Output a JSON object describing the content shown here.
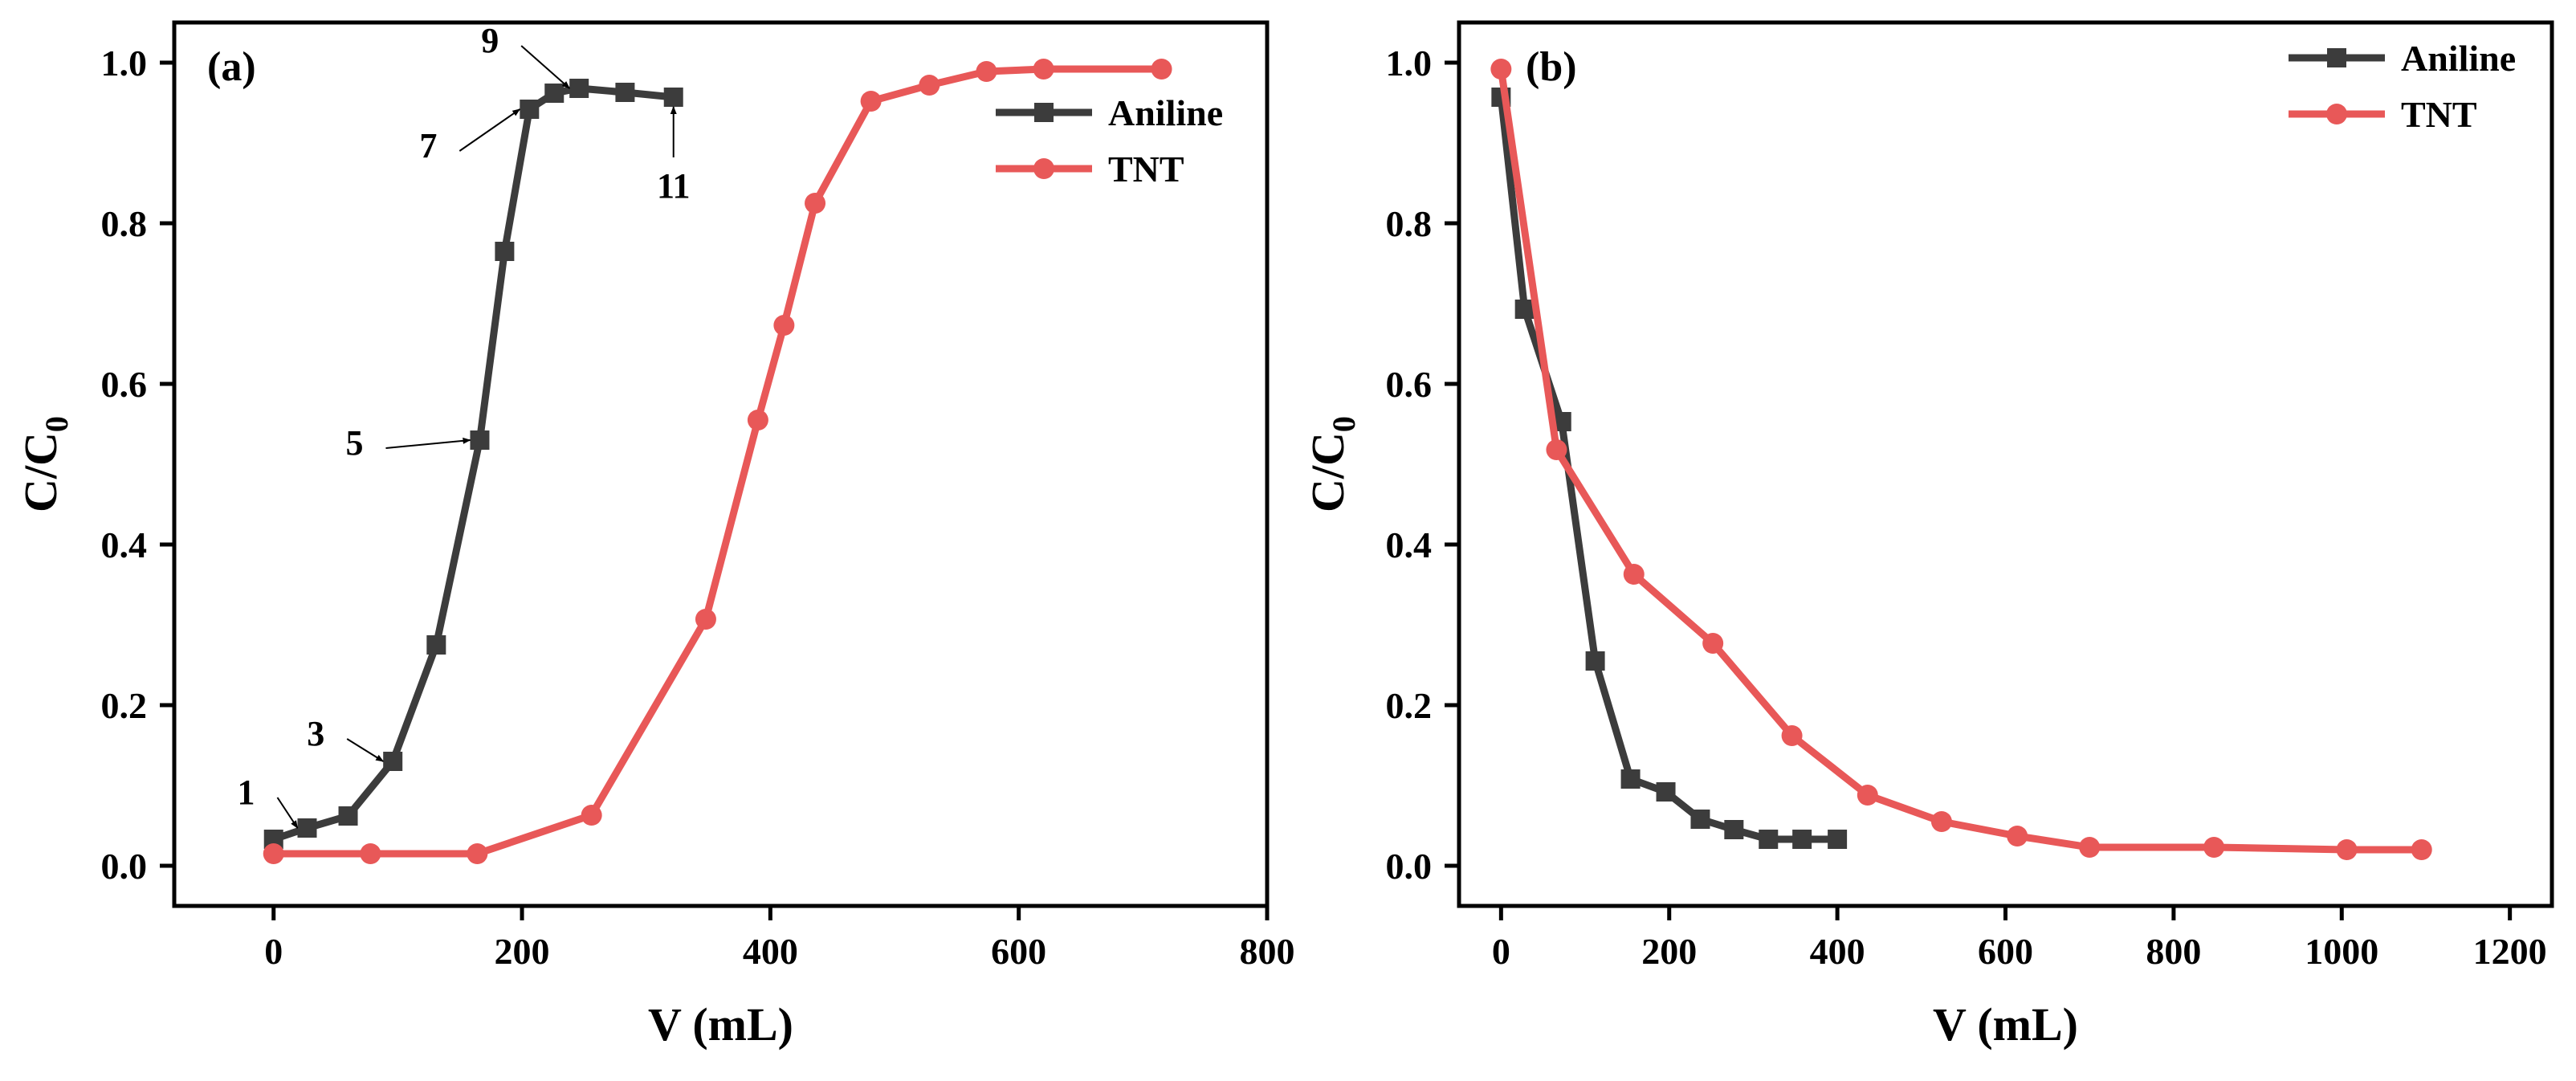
{
  "chart_data": [
    {
      "type": "line",
      "panel_label": "(a)",
      "xlabel": "V (mL)",
      "ylabel_main": "C/C",
      "ylabel_sub": "0",
      "xlim": [
        -80,
        800
      ],
      "ylim": [
        -0.05,
        1.05
      ],
      "xticks": [
        0,
        200,
        400,
        600,
        800
      ],
      "xtick_labels": [
        "0",
        "200",
        "400",
        "600",
        "800"
      ],
      "yticks": [
        0.0,
        0.2,
        0.4,
        0.6,
        0.8,
        1.0
      ],
      "ytick_labels": [
        "0.0",
        "0.2",
        "0.4",
        "0.6",
        "0.8",
        "1.0"
      ],
      "legend_position": "top-right",
      "series": [
        {
          "name": "Aniline",
          "color": "#3c3c3c",
          "marker": "square",
          "x": [
            0,
            27,
            60,
            96,
            131,
            166,
            186,
            206,
            226,
            246,
            283,
            322
          ],
          "y": [
            0.033,
            0.047,
            0.062,
            0.13,
            0.275,
            0.53,
            0.765,
            0.942,
            0.962,
            0.968,
            0.963,
            0.957
          ]
        },
        {
          "name": "TNT",
          "color": "#e85858",
          "marker": "circle",
          "x": [
            0,
            78,
            164,
            256,
            348,
            390,
            411,
            436,
            481,
            528,
            574,
            620,
            715
          ],
          "y": [
            0.015,
            0.015,
            0.015,
            0.063,
            0.307,
            0.555,
            0.673,
            0.825,
            0.952,
            0.972,
            0.989,
            0.992,
            0.992
          ]
        }
      ],
      "annotations": [
        {
          "text": "1",
          "point_index": 1
        },
        {
          "text": "3",
          "point_index": 3
        },
        {
          "text": "5",
          "point_index": 5
        },
        {
          "text": "7",
          "point_index": 7
        },
        {
          "text": "9",
          "point_index": 9
        },
        {
          "text": "11",
          "point_index": 11
        }
      ]
    },
    {
      "type": "line",
      "panel_label": "(b)",
      "xlabel": "V (mL)",
      "ylabel_main": "C/C",
      "ylabel_sub": "0",
      "xlim": [
        -50,
        1250
      ],
      "ylim": [
        -0.05,
        1.05
      ],
      "xticks": [
        0,
        200,
        400,
        600,
        800,
        1000,
        1200
      ],
      "xtick_labels": [
        "0",
        "200",
        "400",
        "600",
        "800",
        "1000",
        "1200"
      ],
      "yticks": [
        0.0,
        0.2,
        0.4,
        0.6,
        0.8,
        1.0
      ],
      "ytick_labels": [
        "0.0",
        "0.2",
        "0.4",
        "0.6",
        "0.8",
        "1.0"
      ],
      "legend_position": "top-right",
      "series": [
        {
          "name": "Aniline",
          "color": "#3c3c3c",
          "marker": "square",
          "x": [
            0,
            28,
            72,
            112,
            154,
            196,
            237,
            277,
            318,
            358,
            400
          ],
          "y": [
            0.957,
            0.693,
            0.553,
            0.255,
            0.108,
            0.092,
            0.058,
            0.045,
            0.033,
            0.033,
            0.033
          ]
        },
        {
          "name": "TNT",
          "color": "#e85858",
          "marker": "circle",
          "x": [
            0,
            66,
            158,
            252,
            346,
            436,
            524,
            614,
            700,
            848,
            1006,
            1095
          ],
          "y": [
            0.992,
            0.518,
            0.363,
            0.277,
            0.162,
            0.088,
            0.055,
            0.037,
            0.023,
            0.023,
            0.02,
            0.02
          ]
        }
      ]
    }
  ]
}
